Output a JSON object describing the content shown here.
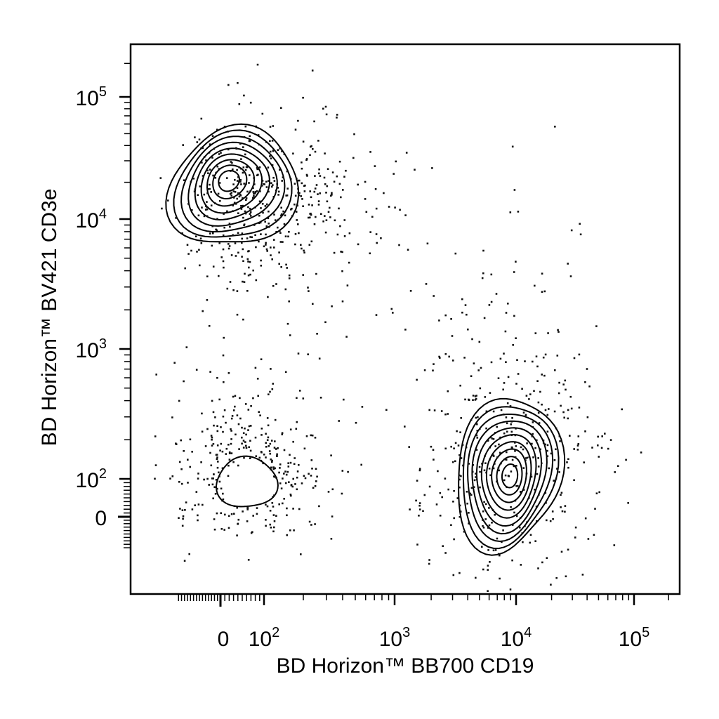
{
  "chart_data": {
    "type": "scatter",
    "subtype": "flow-cytometry-contour-with-outliers",
    "xlabel": "BD Horizon™ BB700 CD19",
    "ylabel": "BD Horizon™ BV421 CD3e",
    "x_scale": "biexponential",
    "y_scale": "biexponential",
    "xlim": [
      -150,
      250000
    ],
    "ylim": [
      -100,
      250000
    ],
    "x_ticks": [
      {
        "value": 0,
        "label": "0"
      },
      {
        "value": 100,
        "base": "10",
        "exp": "2"
      },
      {
        "value": 1000,
        "base": "10",
        "exp": "3"
      },
      {
        "value": 10000,
        "base": "10",
        "exp": "4"
      },
      {
        "value": 100000,
        "base": "10",
        "exp": "5"
      }
    ],
    "y_ticks": [
      {
        "value": 0,
        "label": "0"
      },
      {
        "value": 100,
        "base": "10",
        "exp": "2"
      },
      {
        "value": 1000,
        "base": "10",
        "exp": "3"
      },
      {
        "value": 10000,
        "base": "10",
        "exp": "4"
      },
      {
        "value": 100000,
        "base": "10",
        "exp": "5"
      }
    ],
    "grid": false,
    "legend": "none",
    "populations": [
      {
        "center": [
          30,
          18000
        ],
        "spread": [
          0.55,
          0.28
        ],
        "contour_levels": 9,
        "outlier_count": 480
      },
      {
        "center": [
          60,
          90
        ],
        "spread": [
          0.35,
          0.22
        ],
        "contour_levels": 1,
        "outlier_count": 420
      },
      {
        "center": [
          8500,
          110
        ],
        "spread": [
          0.2,
          0.34
        ],
        "contour_levels": 10,
        "outlier_count": 430
      }
    ],
    "stray_events": 70
  }
}
